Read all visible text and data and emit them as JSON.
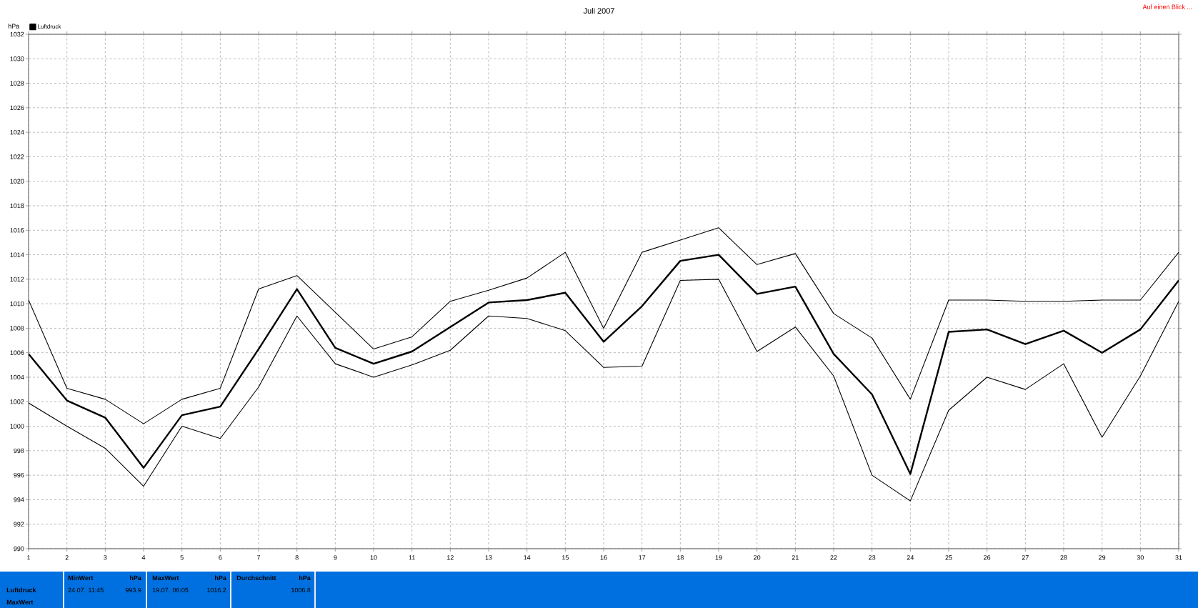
{
  "chart_data": {
    "type": "line",
    "title": "Juli 2007",
    "ylabel": "hPa",
    "x": [
      1,
      2,
      3,
      4,
      5,
      6,
      7,
      8,
      9,
      10,
      11,
      12,
      13,
      14,
      15,
      16,
      17,
      18,
      19,
      20,
      21,
      22,
      23,
      24,
      25,
      26,
      27,
      28,
      29,
      30,
      31
    ],
    "series": [
      {
        "color": "#000000",
        "values": [
          1010.3,
          1003.1,
          1002.2,
          1000.2,
          1002.2,
          1003.1,
          1011.2,
          1012.3,
          1009.3,
          1006.3,
          1007.3,
          1010.2,
          1011.1,
          1012.1,
          1014.2,
          1008.0,
          1014.2,
          1015.2,
          1016.2,
          1013.2,
          1014.1,
          1009.2,
          1007.2,
          1002.2,
          1010.3,
          1010.3,
          1010.2,
          1010.2,
          1010.3,
          1010.3,
          1014.2
        ]
      },
      {
        "name": "Luftdruck",
        "color": "#000000",
        "values": [
          1005.9,
          1002.1,
          1000.7,
          996.6,
          1000.9,
          1001.6,
          1006.3,
          1011.2,
          1006.4,
          1005.1,
          1006.1,
          1008.1,
          1010.1,
          1010.3,
          1010.9,
          1006.9,
          1009.8,
          1013.5,
          1014.0,
          1010.8,
          1011.4,
          1005.9,
          1002.6,
          996.1,
          1007.7,
          1007.9,
          1006.7,
          1007.8,
          1006.0,
          1007.9,
          1011.9
        ]
      },
      {
        "color": "#000000",
        "values": [
          1001.9,
          1000.0,
          998.2,
          995.1,
          1000.0,
          999.0,
          1003.2,
          1009.0,
          1005.1,
          1004.0,
          1005.0,
          1006.2,
          1009.0,
          1008.8,
          1007.8,
          1004.8,
          1004.9,
          1011.9,
          1012.0,
          1006.1,
          1008.1,
          1004.1,
          996.0,
          993.9,
          1001.3,
          1004.0,
          1003.0,
          1005.1,
          999.1,
          1004.1,
          1010.2
        ]
      }
    ],
    "xlim": [
      1,
      31
    ],
    "xticks": [
      1,
      2,
      3,
      4,
      5,
      6,
      7,
      8,
      9,
      10,
      11,
      12,
      13,
      14,
      15,
      16,
      17,
      18,
      19,
      20,
      21,
      22,
      23,
      24,
      25,
      26,
      27,
      28,
      29,
      30,
      31
    ],
    "ylim": [
      990,
      1032
    ],
    "yticks": [
      990,
      992,
      994,
      996,
      998,
      1000,
      1002,
      1004,
      1006,
      1008,
      1010,
      1012,
      1014,
      1016,
      1018,
      1020,
      1022,
      1024,
      1026,
      1028,
      1030,
      1032
    ],
    "grid": true,
    "legend": "top left",
    "marker": "none",
    "line_style": "solid",
    "annotations": [
      "Auf einen Blick ...",
      "Luftdruck",
      "MaxWert",
      "MinWert",
      "hPa",
      "24.07.  11:45",
      "993.9",
      "MaxWert",
      "hPa",
      "19.07.  06:05",
      "1016.2",
      "Durchschnitt",
      "hPa",
      "1006.8"
    ]
  }
}
